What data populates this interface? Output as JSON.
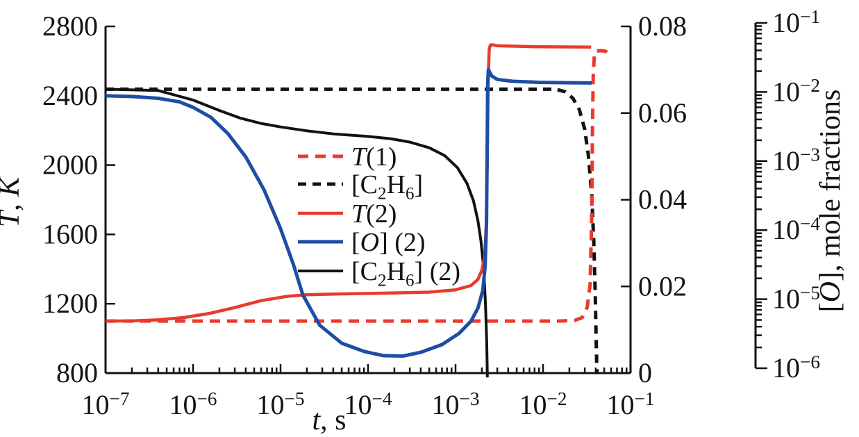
{
  "page": {
    "background": "#ffffff"
  },
  "chart_data": {
    "type": "line",
    "title": "",
    "grid": false,
    "legend_position": "inside-center-left",
    "x_axis": {
      "label_segments": [
        {
          "text": "t",
          "italic": true
        },
        {
          "text": ", s"
        }
      ],
      "scale": "log",
      "ticks_exp": [
        -7,
        -6,
        -5,
        -4,
        -3,
        -2,
        -1
      ],
      "range": [
        1e-07,
        0.1
      ]
    },
    "left_axis": {
      "label_segments": [
        {
          "text": "T",
          "italic": true
        },
        {
          "text": ", "
        },
        {
          "text": "K",
          "italic": true
        }
      ],
      "scale": "linear",
      "range": [
        800,
        2800
      ],
      "ticks": [
        {
          "v": 2800,
          "label": "2800"
        },
        {
          "v": 2400,
          "label": "2400"
        },
        {
          "v": 2000,
          "label": "2000"
        },
        {
          "v": 1600,
          "label": "1600"
        },
        {
          "v": 1200,
          "label": "1200"
        },
        {
          "v": 800,
          "label": "800"
        }
      ]
    },
    "right_axis": {
      "label_segments": [],
      "scale": "linear",
      "range": [
        0,
        0.08
      ],
      "ticks": [
        {
          "v": 0.08,
          "label": "0.08"
        },
        {
          "v": 0.06,
          "label": "0.06"
        },
        {
          "v": 0.04,
          "label": "0.04"
        },
        {
          "v": 0.02,
          "label": "0.02"
        },
        {
          "v": 0,
          "label": "0"
        }
      ]
    },
    "far_right_axis": {
      "label_segments": [
        {
          "text": "["
        },
        {
          "text": "O",
          "italic": true
        },
        {
          "text": "], mole fractions"
        }
      ],
      "scale": "log",
      "ticks_exp": [
        -1,
        -2,
        -3,
        -4,
        -5,
        -6
      ],
      "range": [
        1e-06,
        0.1
      ]
    },
    "colors": {
      "red": "#e83b2c",
      "blue": "#1e4da3",
      "black": "#121212"
    },
    "series": [
      {
        "key": "c2h6-1",
        "name": "[C2H6]",
        "axis": "right",
        "color": "#121212",
        "width": 5,
        "dash": "12 9",
        "points": [
          [
            1e-07,
            0.0655
          ],
          [
            0.014,
            0.0655
          ],
          [
            0.018,
            0.0649
          ],
          [
            0.022,
            0.0634
          ],
          [
            0.026,
            0.0608
          ],
          [
            0.03,
            0.0562
          ],
          [
            0.033,
            0.0502
          ],
          [
            0.036,
            0.0412
          ],
          [
            0.038,
            0.0302
          ],
          [
            0.0395,
            0.0182
          ],
          [
            0.0405,
            0.0075
          ],
          [
            0.0412,
            0.001
          ],
          [
            0.0414,
            0
          ]
        ]
      },
      {
        "key": "t1",
        "name": "T(1)",
        "axis": "left",
        "color": "#e83b2c",
        "width": 5,
        "dash": "15 10",
        "points": [
          [
            1e-07,
            1100
          ],
          [
            0.015,
            1100
          ],
          [
            0.023,
            1104
          ],
          [
            0.028,
            1120
          ],
          [
            0.032,
            1180
          ],
          [
            0.0345,
            1310
          ],
          [
            0.036,
            1700
          ],
          [
            0.0368,
            2250
          ],
          [
            0.0375,
            2520
          ],
          [
            0.0385,
            2630
          ],
          [
            0.04,
            2658
          ],
          [
            0.046,
            2660
          ],
          [
            0.052,
            2657
          ],
          [
            0.056,
            2636
          ]
        ]
      },
      {
        "key": "c2h6-2",
        "name": "[C2H6] (2)",
        "axis": "right",
        "color": "#121212",
        "width": 4,
        "dash": null,
        "points": [
          [
            1e-07,
            0.0655
          ],
          [
            4e-07,
            0.0652
          ],
          [
            1e-06,
            0.063
          ],
          [
            2e-06,
            0.0606
          ],
          [
            3.5e-06,
            0.0588
          ],
          [
            6e-06,
            0.0576
          ],
          [
            1e-05,
            0.0568
          ],
          [
            2e-05,
            0.0559
          ],
          [
            4e-05,
            0.0552
          ],
          [
            0.0001,
            0.0546
          ],
          [
            0.00018,
            0.0541
          ],
          [
            0.0003,
            0.0533
          ],
          [
            0.0005,
            0.052
          ],
          [
            0.00075,
            0.0502
          ],
          [
            0.00105,
            0.0474
          ],
          [
            0.00135,
            0.0438
          ],
          [
            0.0016,
            0.0398
          ],
          [
            0.0018,
            0.0352
          ],
          [
            0.00195,
            0.0306
          ],
          [
            0.0021,
            0.024
          ],
          [
            0.0022,
            0.016
          ],
          [
            0.00227,
            0.0072
          ],
          [
            0.0023,
            0.0012
          ],
          [
            0.00231,
            -0.001
          ]
        ]
      },
      {
        "key": "t2",
        "name": "T(2)",
        "axis": "left",
        "color": "#e83b2c",
        "width": 4.5,
        "dash": null,
        "points": [
          [
            1e-07,
            1100
          ],
          [
            2e-07,
            1101
          ],
          [
            4e-07,
            1107
          ],
          [
            8e-07,
            1121
          ],
          [
            1.5e-06,
            1143
          ],
          [
            3e-06,
            1178
          ],
          [
            6e-06,
            1218
          ],
          [
            1.2e-05,
            1243
          ],
          [
            2e-05,
            1252
          ],
          [
            5e-05,
            1257
          ],
          [
            0.00015,
            1261
          ],
          [
            0.0005,
            1267
          ],
          [
            0.001,
            1280
          ],
          [
            0.0015,
            1305
          ],
          [
            0.0018,
            1340
          ],
          [
            0.002,
            1393
          ],
          [
            0.00215,
            1470
          ],
          [
            0.00224,
            1640
          ],
          [
            0.0023,
            2020
          ],
          [
            0.00236,
            2470
          ],
          [
            0.00242,
            2665
          ],
          [
            0.0025,
            2692
          ],
          [
            0.00265,
            2694
          ],
          [
            0.003,
            2688
          ],
          [
            0.008,
            2683
          ],
          [
            0.0355,
            2681
          ]
        ]
      },
      {
        "key": "o-2",
        "name": "[O] (2)",
        "axis": "far_right",
        "color": "#1e4da3",
        "width": 5,
        "dash": null,
        "points": [
          [
            1e-07,
            0.0088
          ],
          [
            2e-07,
            0.0086
          ],
          [
            4e-07,
            0.0081
          ],
          [
            7e-07,
            0.0072
          ],
          [
            1e-06,
            0.006
          ],
          [
            1.6e-06,
            0.0043
          ],
          [
            2.5e-06,
            0.0025
          ],
          [
            4e-06,
            0.00115
          ],
          [
            6.5e-06,
            0.00038
          ],
          [
            1e-05,
            0.000105
          ],
          [
            1.4e-05,
            3.2e-05
          ],
          [
            1.8e-05,
            1.15e-05
          ],
          [
            2.8e-05,
            4.2e-06
          ],
          [
            5e-05,
            2.3e-06
          ],
          [
            9e-05,
            1.75e-06
          ],
          [
            0.00015,
            1.52e-06
          ],
          [
            0.00025,
            1.5e-06
          ],
          [
            0.0004,
            1.7e-06
          ],
          [
            0.0007,
            2.2e-06
          ],
          [
            0.0011,
            3.2e-06
          ],
          [
            0.0015,
            4.8e-06
          ],
          [
            0.0018,
            7.4e-06
          ],
          [
            0.00205,
            1.35e-05
          ],
          [
            0.00218,
            3e-05
          ],
          [
            0.00226,
            0.00013
          ],
          [
            0.0023,
            0.0016
          ],
          [
            0.00233,
            0.0135
          ],
          [
            0.00237,
            0.021
          ],
          [
            0.00245,
            0.0195
          ],
          [
            0.0026,
            0.017
          ],
          [
            0.003,
            0.0152
          ],
          [
            0.0045,
            0.0143
          ],
          [
            0.009,
            0.0138
          ],
          [
            0.02,
            0.0136
          ],
          [
            0.036,
            0.0135
          ]
        ]
      }
    ],
    "legend": [
      {
        "key": "t1",
        "color": "#e83b2c",
        "width": 5,
        "dash": "15 10",
        "segments": [
          {
            "text": "T",
            "italic": true
          },
          {
            "text": "(1)"
          }
        ]
      },
      {
        "key": "c2h6-1",
        "color": "#121212",
        "width": 5,
        "dash": "12 9",
        "segments": [
          {
            "text": "[C"
          },
          {
            "text": "2",
            "sub": true
          },
          {
            "text": "H"
          },
          {
            "text": "6",
            "sub": true
          },
          {
            "text": "]"
          }
        ]
      },
      {
        "key": "t2",
        "color": "#e83b2c",
        "width": 4.5,
        "dash": null,
        "segments": [
          {
            "text": "T",
            "italic": true
          },
          {
            "text": "(2)"
          }
        ]
      },
      {
        "key": "o-2",
        "color": "#1e4da3",
        "width": 5,
        "dash": null,
        "segments": [
          {
            "text": "["
          },
          {
            "text": "O",
            "italic": true
          },
          {
            "text": "] (2)"
          }
        ]
      },
      {
        "key": "c2h6-2",
        "color": "#121212",
        "width": 4,
        "dash": null,
        "segments": [
          {
            "text": "[C"
          },
          {
            "text": "2",
            "sub": true
          },
          {
            "text": "H"
          },
          {
            "text": "6",
            "sub": true
          },
          {
            "text": "] (2)"
          }
        ]
      }
    ]
  }
}
